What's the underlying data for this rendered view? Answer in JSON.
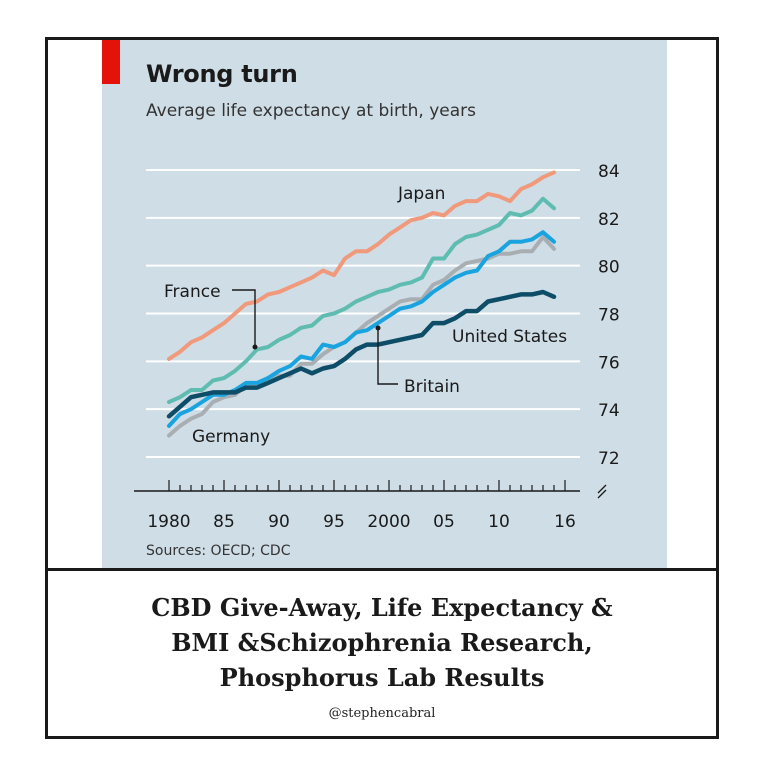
{
  "chart_data": {
    "type": "line",
    "title": "Wrong turn",
    "subtitle": "Average life expectancy at birth, years",
    "source": "Sources: OECD; CDC",
    "x_tick_labels": [
      "1980",
      "85",
      "90",
      "95",
      "2000",
      "05",
      "10",
      "16"
    ],
    "x_tick_values": [
      1980,
      1985,
      1990,
      1995,
      2000,
      2005,
      2010,
      2016
    ],
    "y_tick_values": [
      72,
      74,
      76,
      78,
      80,
      82,
      84
    ],
    "xlim": [
      1980,
      2016
    ],
    "ylim": [
      72,
      84
    ],
    "grid": true,
    "y_axis_side": "right",
    "x": [
      1980,
      1981,
      1982,
      1983,
      1984,
      1985,
      1986,
      1987,
      1988,
      1989,
      1990,
      1991,
      1992,
      1993,
      1994,
      1995,
      1996,
      1997,
      1998,
      1999,
      2000,
      2001,
      2002,
      2003,
      2004,
      2005,
      2006,
      2007,
      2008,
      2009,
      2010,
      2011,
      2012,
      2013,
      2014,
      2015
    ],
    "series": [
      {
        "name": "Japan",
        "color": "#f0997b",
        "values": [
          76.1,
          76.4,
          76.8,
          77.0,
          77.3,
          77.6,
          78.0,
          78.4,
          78.5,
          78.8,
          78.9,
          79.1,
          79.3,
          79.5,
          79.8,
          79.6,
          80.3,
          80.6,
          80.6,
          80.9,
          81.3,
          81.6,
          81.9,
          82.0,
          82.2,
          82.1,
          82.5,
          82.7,
          82.7,
          83.0,
          82.9,
          82.7,
          83.2,
          83.4,
          83.7,
          83.9
        ]
      },
      {
        "name": "France",
        "color": "#5fbcb0",
        "values": [
          74.3,
          74.5,
          74.8,
          74.8,
          75.2,
          75.3,
          75.6,
          76.0,
          76.5,
          76.6,
          76.9,
          77.1,
          77.4,
          77.5,
          77.9,
          78.0,
          78.2,
          78.5,
          78.7,
          78.9,
          79.0,
          79.2,
          79.3,
          79.5,
          80.3,
          80.3,
          80.9,
          81.2,
          81.3,
          81.5,
          81.7,
          82.2,
          82.1,
          82.3,
          82.8,
          82.4
        ]
      },
      {
        "name": "Germany",
        "color": "#a9aeb3",
        "values": [
          72.9,
          73.3,
          73.6,
          73.8,
          74.3,
          74.5,
          74.6,
          75.0,
          75.1,
          75.3,
          75.4,
          75.4,
          75.9,
          75.9,
          76.3,
          76.6,
          76.8,
          77.2,
          77.6,
          77.9,
          78.2,
          78.5,
          78.6,
          78.6,
          79.2,
          79.4,
          79.8,
          80.1,
          80.2,
          80.3,
          80.5,
          80.5,
          80.6,
          80.6,
          81.2,
          80.7
        ]
      },
      {
        "name": "Britain",
        "color": "#1aa4df",
        "values": [
          73.3,
          73.8,
          74.0,
          74.3,
          74.6,
          74.6,
          74.8,
          75.1,
          75.1,
          75.3,
          75.6,
          75.8,
          76.2,
          76.1,
          76.7,
          76.6,
          76.8,
          77.2,
          77.3,
          77.6,
          77.9,
          78.2,
          78.3,
          78.5,
          78.9,
          79.2,
          79.5,
          79.7,
          79.8,
          80.4,
          80.6,
          81.0,
          81.0,
          81.1,
          81.4,
          81.0
        ]
      },
      {
        "name": "United States",
        "color": "#0e4d67",
        "values": [
          73.7,
          74.1,
          74.5,
          74.6,
          74.7,
          74.7,
          74.7,
          74.9,
          74.9,
          75.1,
          75.3,
          75.5,
          75.7,
          75.5,
          75.7,
          75.8,
          76.1,
          76.5,
          76.7,
          76.7,
          76.8,
          76.9,
          77.0,
          77.1,
          77.6,
          77.6,
          77.8,
          78.1,
          78.1,
          78.5,
          78.6,
          78.7,
          78.8,
          78.8,
          78.9,
          78.7
        ]
      }
    ],
    "labels": {
      "japan": "Japan",
      "france": "France",
      "germany": "Germany",
      "britain": "Britain",
      "us": "United States"
    }
  },
  "caption": {
    "line1": "CBD Give-Away, Life Expectancy &",
    "line2": "BMI &Schizophrenia Research,",
    "line3": "Phosphorus Lab Results",
    "handle": "@stephencabral"
  },
  "colors": {
    "panel": "#cfdde6",
    "accent": "#e3120b",
    "grid": "#ffffff",
    "text": "#1a1a1a"
  }
}
